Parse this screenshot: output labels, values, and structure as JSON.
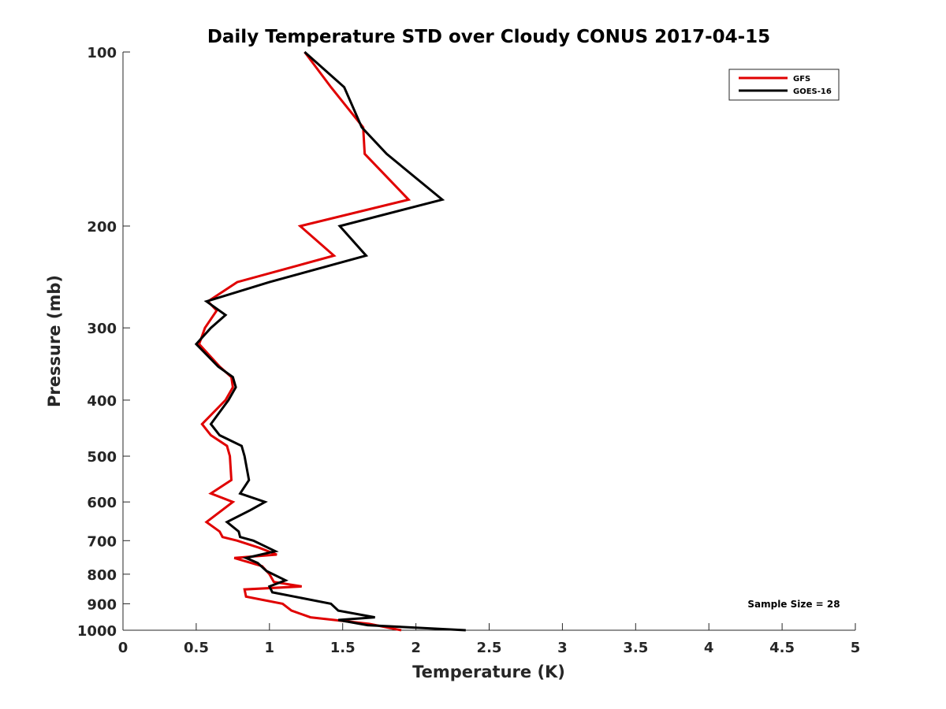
{
  "chart_data": {
    "type": "line",
    "title": "Daily Temperature STD over Cloudy CONUS 2017-04-15",
    "xlabel": "Temperature (K)",
    "ylabel": "Pressure (mb)",
    "xlim": [
      0,
      5
    ],
    "ylim": [
      100,
      1000
    ],
    "y_scale": "log",
    "y_reversed": true,
    "x_ticks": [
      "0",
      "0.5",
      "1",
      "1.5",
      "2",
      "2.5",
      "3",
      "3.5",
      "4",
      "4.5",
      "5"
    ],
    "x_tick_values": [
      0,
      0.5,
      1,
      1.5,
      2,
      2.5,
      3,
      3.5,
      4,
      4.5,
      5
    ],
    "y_ticks": [
      "100",
      "200",
      "300",
      "400",
      "500",
      "600",
      "700",
      "800",
      "900",
      "1000"
    ],
    "y_tick_values": [
      100,
      200,
      300,
      400,
      500,
      600,
      700,
      800,
      900,
      1000
    ],
    "grid": false,
    "legend_position": "top-right",
    "annotation": "Sample Size = 28",
    "series": [
      {
        "name": "GFS",
        "color": "#e00000",
        "points": [
          [
            1.24,
            100
          ],
          [
            1.42,
            115
          ],
          [
            1.64,
            135
          ],
          [
            1.65,
            150
          ],
          [
            1.95,
            180
          ],
          [
            1.21,
            200
          ],
          [
            1.44,
            225
          ],
          [
            0.78,
            250
          ],
          [
            0.58,
            270
          ],
          [
            0.64,
            280
          ],
          [
            0.56,
            300
          ],
          [
            0.52,
            320
          ],
          [
            0.66,
            350
          ],
          [
            0.74,
            365
          ],
          [
            0.75,
            380
          ],
          [
            0.7,
            400
          ],
          [
            0.54,
            440
          ],
          [
            0.6,
            460
          ],
          [
            0.71,
            480
          ],
          [
            0.73,
            500
          ],
          [
            0.74,
            550
          ],
          [
            0.6,
            580
          ],
          [
            0.75,
            600
          ],
          [
            0.57,
            650
          ],
          [
            0.66,
            675
          ],
          [
            0.68,
            690
          ],
          [
            0.78,
            700
          ],
          [
            0.93,
            720
          ],
          [
            1.05,
            740
          ],
          [
            0.76,
            750
          ],
          [
            0.95,
            775
          ],
          [
            1.0,
            800
          ],
          [
            1.03,
            825
          ],
          [
            1.22,
            840
          ],
          [
            0.83,
            850
          ],
          [
            0.84,
            875
          ],
          [
            1.09,
            900
          ],
          [
            1.15,
            925
          ],
          [
            1.28,
            950
          ],
          [
            1.68,
            975
          ],
          [
            1.9,
            1000
          ]
        ]
      },
      {
        "name": "GOES-16",
        "color": "#000000",
        "points": [
          [
            1.24,
            100
          ],
          [
            1.51,
            115
          ],
          [
            1.63,
            135
          ],
          [
            1.8,
            150
          ],
          [
            2.18,
            180
          ],
          [
            1.48,
            200
          ],
          [
            1.66,
            225
          ],
          [
            1.0,
            250
          ],
          [
            0.57,
            270
          ],
          [
            0.7,
            285
          ],
          [
            0.6,
            300
          ],
          [
            0.5,
            320
          ],
          [
            0.65,
            350
          ],
          [
            0.75,
            365
          ],
          [
            0.77,
            380
          ],
          [
            0.72,
            400
          ],
          [
            0.6,
            440
          ],
          [
            0.66,
            460
          ],
          [
            0.81,
            480
          ],
          [
            0.83,
            500
          ],
          [
            0.86,
            550
          ],
          [
            0.8,
            580
          ],
          [
            0.97,
            600
          ],
          [
            0.87,
            620
          ],
          [
            0.71,
            650
          ],
          [
            0.79,
            675
          ],
          [
            0.8,
            690
          ],
          [
            0.89,
            700
          ],
          [
            1.04,
            730
          ],
          [
            0.84,
            750
          ],
          [
            0.92,
            765
          ],
          [
            0.98,
            790
          ],
          [
            1.11,
            820
          ],
          [
            1.0,
            840
          ],
          [
            1.02,
            860
          ],
          [
            1.42,
            900
          ],
          [
            1.47,
            925
          ],
          [
            1.72,
            950
          ],
          [
            1.47,
            960
          ],
          [
            1.67,
            980
          ],
          [
            2.34,
            1000
          ]
        ]
      }
    ]
  }
}
